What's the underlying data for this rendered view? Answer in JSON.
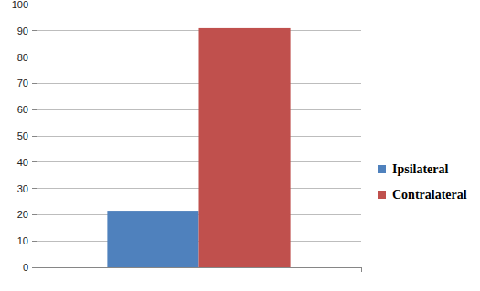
{
  "chart_data": {
    "type": "bar",
    "categories": [
      null
    ],
    "series": [
      {
        "name": "Ipsilateral",
        "color": "#4f81bd",
        "values": [
          21.5
        ]
      },
      {
        "name": "Contralateral",
        "color": "#c0504d",
        "values": [
          91
        ]
      }
    ],
    "ylim": [
      0,
      100
    ],
    "yticks": [
      0,
      10,
      20,
      30,
      40,
      50,
      60,
      70,
      80,
      90,
      100
    ],
    "grid": true,
    "legend": "right"
  }
}
